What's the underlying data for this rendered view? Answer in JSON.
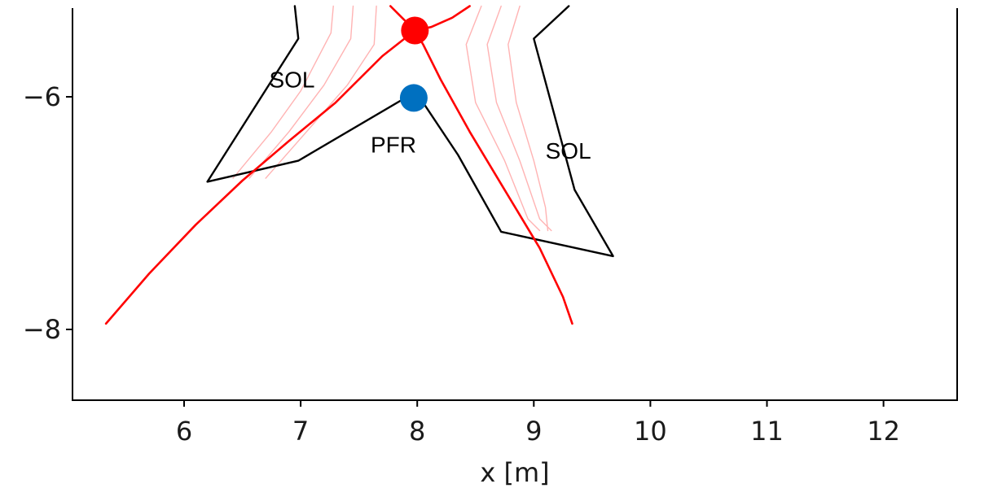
{
  "chart_data": {
    "type": "line",
    "title": "",
    "xlabel": "x [m]",
    "ylabel": "",
    "xlim": [
      5.05,
      12.65
    ],
    "ylim": [
      -8.6,
      -5.22
    ],
    "grid": false,
    "x_ticks": [
      6,
      7,
      8,
      9,
      10,
      11,
      12
    ],
    "y_ticks": [
      -6,
      -8
    ],
    "x_tick_labels": [
      "6",
      "7",
      "8",
      "9",
      "10",
      "11",
      "12"
    ],
    "y_tick_labels": [
      "−6",
      "−8"
    ],
    "colors": {
      "separatrix": "#ff0000",
      "flux_surfaces": "#ffb3b3",
      "wall": "#000000",
      "x_point": "#ff0000",
      "strike_point": "#0070c0"
    },
    "series": [
      {
        "role": "wall",
        "points": [
          [
            6.95,
            -5.22
          ],
          [
            6.98,
            -5.5
          ],
          [
            6.2,
            -6.73
          ],
          [
            6.98,
            -6.55
          ],
          [
            7.93,
            -5.99
          ],
          [
            8.05,
            -6.05
          ],
          [
            8.35,
            -6.5
          ],
          [
            8.72,
            -7.16
          ],
          [
            9.68,
            -7.37
          ],
          [
            9.35,
            -6.8
          ],
          [
            9.0,
            -5.5
          ],
          [
            9.3,
            -5.22
          ]
        ]
      },
      {
        "role": "separatrix-left-lower",
        "points": [
          [
            7.98,
            -5.43
          ],
          [
            7.7,
            -5.65
          ],
          [
            7.3,
            -6.05
          ],
          [
            6.9,
            -6.38
          ],
          [
            6.5,
            -6.72
          ],
          [
            6.1,
            -7.1
          ],
          [
            5.7,
            -7.52
          ],
          [
            5.33,
            -7.95
          ]
        ]
      },
      {
        "role": "separatrix-right-lower",
        "points": [
          [
            7.98,
            -5.43
          ],
          [
            8.05,
            -5.55
          ],
          [
            8.2,
            -5.85
          ],
          [
            8.45,
            -6.3
          ],
          [
            8.75,
            -6.8
          ],
          [
            9.05,
            -7.3
          ],
          [
            9.25,
            -7.72
          ],
          [
            9.33,
            -7.95
          ]
        ]
      },
      {
        "role": "separatrix-upper-left",
        "points": [
          [
            7.98,
            -5.43
          ],
          [
            7.85,
            -5.3
          ],
          [
            7.77,
            -5.22
          ]
        ]
      },
      {
        "role": "separatrix-upper-right",
        "points": [
          [
            7.98,
            -5.43
          ],
          [
            8.12,
            -5.4
          ],
          [
            8.3,
            -5.32
          ],
          [
            8.45,
            -5.22
          ]
        ]
      },
      {
        "role": "flux-surface-left-1",
        "points": [
          [
            7.28,
            -5.22
          ],
          [
            7.26,
            -5.45
          ],
          [
            7.0,
            -5.95
          ],
          [
            6.75,
            -6.3
          ],
          [
            6.42,
            -6.7
          ]
        ]
      },
      {
        "role": "flux-surface-left-2",
        "points": [
          [
            7.45,
            -5.22
          ],
          [
            7.43,
            -5.5
          ],
          [
            7.2,
            -5.9
          ],
          [
            6.9,
            -6.3
          ],
          [
            6.56,
            -6.7
          ]
        ]
      },
      {
        "role": "flux-surface-left-3",
        "points": [
          [
            7.65,
            -5.22
          ],
          [
            7.63,
            -5.55
          ],
          [
            7.4,
            -5.9
          ],
          [
            7.05,
            -6.3
          ],
          [
            6.7,
            -6.7
          ]
        ]
      },
      {
        "role": "flux-surface-right-1",
        "points": [
          [
            8.55,
            -5.22
          ],
          [
            8.42,
            -5.55
          ],
          [
            8.5,
            -6.05
          ],
          [
            8.75,
            -6.55
          ],
          [
            8.95,
            -7.05
          ],
          [
            9.05,
            -7.15
          ]
        ]
      },
      {
        "role": "flux-surface-right-2",
        "points": [
          [
            8.72,
            -5.22
          ],
          [
            8.6,
            -5.55
          ],
          [
            8.68,
            -6.05
          ],
          [
            8.88,
            -6.55
          ],
          [
            9.05,
            -7.05
          ],
          [
            9.15,
            -7.15
          ]
        ]
      },
      {
        "role": "flux-surface-right-3",
        "points": [
          [
            8.88,
            -5.22
          ],
          [
            8.78,
            -5.55
          ],
          [
            8.85,
            -6.05
          ],
          [
            9.0,
            -6.55
          ],
          [
            9.1,
            -6.95
          ],
          [
            9.12,
            -7.15
          ]
        ]
      }
    ],
    "markers": [
      {
        "role": "x-point",
        "x": 7.98,
        "y": -5.43
      },
      {
        "role": "strike-point",
        "x": 7.97,
        "y": -6.01
      }
    ],
    "annotations": [
      {
        "text": "SOL",
        "x": 6.73,
        "y": -5.92
      },
      {
        "text": "PFR",
        "x": 7.6,
        "y": -6.48
      },
      {
        "text": "SOL",
        "x": 9.1,
        "y": -6.53
      }
    ]
  }
}
